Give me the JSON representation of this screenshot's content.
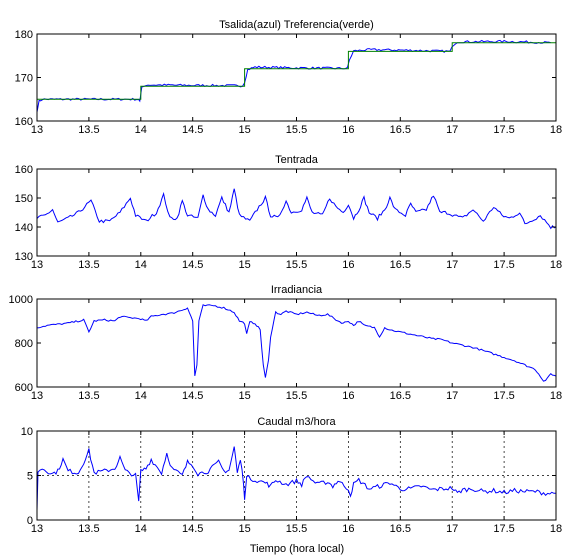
{
  "figure": {
    "xlabel": "Tiempo (hora local)"
  },
  "colors": {
    "blue": "#0000ff",
    "green": "#008000",
    "axis": "#000000",
    "grid": "#000000"
  },
  "chart_data": [
    {
      "type": "line",
      "title": "Tsalida(azul) Treferencia(verde)",
      "xlabel": "",
      "ylabel": "",
      "xlim": [
        13,
        18
      ],
      "ylim": [
        160,
        180
      ],
      "xticks": [
        "13",
        "13.5",
        "14",
        "14.5",
        "15",
        "15.5",
        "16",
        "16.5",
        "17",
        "17.5",
        "18"
      ],
      "yticks": [
        "160",
        "170",
        "180"
      ],
      "grid": false,
      "series": [
        {
          "color": "blue",
          "noise": 0.25,
          "points": [
            [
              13,
              162.3
            ],
            [
              13.02,
              164.5
            ],
            [
              13.05,
              165
            ],
            [
              13.5,
              165
            ],
            [
              13.98,
              165
            ],
            [
              13.99,
              164.5
            ],
            [
              14.01,
              167.6
            ],
            [
              14.05,
              168.3
            ],
            [
              14.5,
              168.2
            ],
            [
              14.98,
              168.1
            ],
            [
              15.0,
              169
            ],
            [
              15.03,
              171.8
            ],
            [
              15.1,
              172.4
            ],
            [
              15.5,
              172.2
            ],
            [
              15.99,
              172.1
            ],
            [
              16.01,
              174
            ],
            [
              16.05,
              176.1
            ],
            [
              16.2,
              176.4
            ],
            [
              16.5,
              176.3
            ],
            [
              16.98,
              176
            ],
            [
              17.01,
              177.5
            ],
            [
              17.05,
              178.2
            ],
            [
              17.5,
              178.3
            ],
            [
              17.95,
              178
            ]
          ]
        },
        {
          "color": "green",
          "noise": 0,
          "points": [
            [
              13,
              165
            ],
            [
              14,
              165
            ],
            [
              14,
              168
            ],
            [
              15,
              168
            ],
            [
              15,
              172
            ],
            [
              16,
              172
            ],
            [
              16,
              176
            ],
            [
              17,
              176
            ],
            [
              17,
              178
            ],
            [
              18,
              178
            ]
          ]
        }
      ]
    },
    {
      "type": "line",
      "title": "Tentrada",
      "xlabel": "",
      "ylabel": "",
      "xlim": [
        13,
        18
      ],
      "ylim": [
        130,
        160
      ],
      "xticks": [
        "13",
        "13.5",
        "14",
        "14.5",
        "15",
        "15.5",
        "16",
        "16.5",
        "17",
        "17.5",
        "18"
      ],
      "yticks": [
        "130",
        "140",
        "150",
        "160"
      ],
      "grid": false,
      "series": [
        {
          "color": "blue",
          "noise": 0.6,
          "points": [
            [
              13,
              143
            ],
            [
              13.08,
              144
            ],
            [
              13.15,
              146
            ],
            [
              13.2,
              141.5
            ],
            [
              13.3,
              143
            ],
            [
              13.4,
              145
            ],
            [
              13.52,
              149
            ],
            [
              13.6,
              142
            ],
            [
              13.7,
              142
            ],
            [
              13.8,
              145
            ],
            [
              13.9,
              150
            ],
            [
              13.95,
              144
            ],
            [
              14.05,
              142
            ],
            [
              14.15,
              145
            ],
            [
              14.22,
              151
            ],
            [
              14.28,
              143
            ],
            [
              14.35,
              143
            ],
            [
              14.4,
              149
            ],
            [
              14.45,
              144
            ],
            [
              14.55,
              143
            ],
            [
              14.6,
              151
            ],
            [
              14.65,
              146
            ],
            [
              14.72,
              144
            ],
            [
              14.78,
              150
            ],
            [
              14.85,
              145
            ],
            [
              14.9,
              153
            ],
            [
              14.95,
              144
            ],
            [
              15.05,
              142
            ],
            [
              15.12,
              146
            ],
            [
              15.2,
              150
            ],
            [
              15.25,
              144
            ],
            [
              15.32,
              143
            ],
            [
              15.4,
              149
            ],
            [
              15.45,
              145
            ],
            [
              15.55,
              146
            ],
            [
              15.6,
              150
            ],
            [
              15.65,
              145
            ],
            [
              15.75,
              144
            ],
            [
              15.82,
              150
            ],
            [
              15.88,
              147
            ],
            [
              15.95,
              145
            ],
            [
              16.0,
              148
            ],
            [
              16.05,
              143
            ],
            [
              16.1,
              146
            ],
            [
              16.15,
              150
            ],
            [
              16.2,
              145
            ],
            [
              16.28,
              143
            ],
            [
              16.35,
              146
            ],
            [
              16.4,
              150
            ],
            [
              16.45,
              146
            ],
            [
              16.55,
              144
            ],
            [
              16.6,
              148
            ],
            [
              16.65,
              145
            ],
            [
              16.75,
              146
            ],
            [
              16.82,
              151
            ],
            [
              16.88,
              145
            ],
            [
              16.95,
              145
            ],
            [
              17.02,
              144
            ],
            [
              17.1,
              143
            ],
            [
              17.2,
              146
            ],
            [
              17.3,
              142
            ],
            [
              17.4,
              147
            ],
            [
              17.48,
              144
            ],
            [
              17.55,
              143
            ],
            [
              17.65,
              145
            ],
            [
              17.7,
              141
            ],
            [
              17.75,
              142
            ],
            [
              17.85,
              144
            ],
            [
              17.95,
              140
            ],
            [
              18.0,
              140
            ]
          ]
        }
      ]
    },
    {
      "type": "line",
      "title": "Irradiancia",
      "xlabel": "",
      "ylabel": "",
      "xlim": [
        13,
        18
      ],
      "ylim": [
        600,
        1000
      ],
      "xticks": [
        "13",
        "13.5",
        "14",
        "14.5",
        "15",
        "15.5",
        "16",
        "16.5",
        "17",
        "17.5",
        "18"
      ],
      "yticks": [
        "600",
        "800",
        "1000"
      ],
      "grid": false,
      "series": [
        {
          "color": "blue",
          "noise": 4,
          "points": [
            [
              13,
              870
            ],
            [
              13.1,
              880
            ],
            [
              13.2,
              885
            ],
            [
              13.3,
              890
            ],
            [
              13.45,
              905
            ],
            [
              13.5,
              850
            ],
            [
              13.55,
              900
            ],
            [
              13.65,
              905
            ],
            [
              13.75,
              900
            ],
            [
              13.8,
              920
            ],
            [
              13.9,
              915
            ],
            [
              14.0,
              910
            ],
            [
              14.05,
              900
            ],
            [
              14.1,
              920
            ],
            [
              14.2,
              930
            ],
            [
              14.3,
              935
            ],
            [
              14.4,
              950
            ],
            [
              14.45,
              960
            ],
            [
              14.5,
              900
            ],
            [
              14.52,
              650
            ],
            [
              14.54,
              700
            ],
            [
              14.56,
              900
            ],
            [
              14.6,
              970
            ],
            [
              14.7,
              970
            ],
            [
              14.8,
              960
            ],
            [
              14.9,
              940
            ],
            [
              14.95,
              900
            ],
            [
              15.0,
              890
            ],
            [
              15.02,
              840
            ],
            [
              15.05,
              895
            ],
            [
              15.1,
              890
            ],
            [
              15.15,
              860
            ],
            [
              15.18,
              700
            ],
            [
              15.2,
              640
            ],
            [
              15.23,
              720
            ],
            [
              15.25,
              830
            ],
            [
              15.3,
              940
            ],
            [
              15.35,
              930
            ],
            [
              15.4,
              945
            ],
            [
              15.5,
              930
            ],
            [
              15.6,
              940
            ],
            [
              15.7,
              925
            ],
            [
              15.8,
              930
            ],
            [
              15.9,
              900
            ],
            [
              15.95,
              890
            ],
            [
              16.0,
              900
            ],
            [
              16.05,
              880
            ],
            [
              16.1,
              900
            ],
            [
              16.15,
              880
            ],
            [
              16.25,
              870
            ],
            [
              16.3,
              830
            ],
            [
              16.35,
              870
            ],
            [
              16.4,
              860
            ],
            [
              16.5,
              850
            ],
            [
              16.6,
              840
            ],
            [
              16.7,
              830
            ],
            [
              16.8,
              820
            ],
            [
              16.9,
              815
            ],
            [
              17.0,
              800
            ],
            [
              17.1,
              790
            ],
            [
              17.2,
              780
            ],
            [
              17.3,
              765
            ],
            [
              17.4,
              750
            ],
            [
              17.5,
              735
            ],
            [
              17.6,
              720
            ],
            [
              17.7,
              700
            ],
            [
              17.8,
              680
            ],
            [
              17.85,
              650
            ],
            [
              17.88,
              625
            ],
            [
              17.92,
              640
            ],
            [
              17.95,
              660
            ],
            [
              18.0,
              650
            ]
          ]
        }
      ]
    },
    {
      "type": "line",
      "title": "Caudal m3/hora",
      "xlabel": "Tiempo (hora local)",
      "ylabel": "",
      "xlim": [
        13,
        18
      ],
      "ylim": [
        0,
        10
      ],
      "xticks": [
        "13",
        "13.5",
        "14",
        "14.5",
        "15",
        "15.5",
        "16",
        "16.5",
        "17",
        "17.5",
        "18"
      ],
      "yticks": [
        "0",
        "5",
        "10"
      ],
      "grid": true,
      "series": [
        {
          "color": "blue",
          "noise": 0.25,
          "points": [
            [
              13,
              1.0
            ],
            [
              13.01,
              5.5
            ],
            [
              13.05,
              5.8
            ],
            [
              13.15,
              5.2
            ],
            [
              13.2,
              5.5
            ],
            [
              13.25,
              6.8
            ],
            [
              13.3,
              5.5
            ],
            [
              13.4,
              5.3
            ],
            [
              13.45,
              6.5
            ],
            [
              13.5,
              7.8
            ],
            [
              13.55,
              5.3
            ],
            [
              13.65,
              5.5
            ],
            [
              13.75,
              5.8
            ],
            [
              13.8,
              7.0
            ],
            [
              13.85,
              5.5
            ],
            [
              13.95,
              5.0
            ],
            [
              13.98,
              2.0
            ],
            [
              14.0,
              5.5
            ],
            [
              14.05,
              5.8
            ],
            [
              14.1,
              6.8
            ],
            [
              14.2,
              5.3
            ],
            [
              14.25,
              7.5
            ],
            [
              14.3,
              5.8
            ],
            [
              14.4,
              5.0
            ],
            [
              14.45,
              6.5
            ],
            [
              14.5,
              6.2
            ],
            [
              14.55,
              5.2
            ],
            [
              14.65,
              5.5
            ],
            [
              14.75,
              6.5
            ],
            [
              14.8,
              5.5
            ],
            [
              14.85,
              5.6
            ],
            [
              14.9,
              8.2
            ],
            [
              14.93,
              5.3
            ],
            [
              14.96,
              6.8
            ],
            [
              14.99,
              4.2
            ],
            [
              15.0,
              2.5
            ],
            [
              15.02,
              4.8
            ],
            [
              15.1,
              4.5
            ],
            [
              15.2,
              4.2
            ],
            [
              15.25,
              3.8
            ],
            [
              15.3,
              4.5
            ],
            [
              15.4,
              4.0
            ],
            [
              15.5,
              4.4
            ],
            [
              15.55,
              4.0
            ],
            [
              15.6,
              5.0
            ],
            [
              15.7,
              4.0
            ],
            [
              15.8,
              4.3
            ],
            [
              15.85,
              3.8
            ],
            [
              15.9,
              4.4
            ],
            [
              16.0,
              3.5
            ],
            [
              16.02,
              2.8
            ],
            [
              16.05,
              4.0
            ],
            [
              16.1,
              4.5
            ],
            [
              16.2,
              3.5
            ],
            [
              16.3,
              3.8
            ],
            [
              16.4,
              4.2
            ],
            [
              16.5,
              3.5
            ],
            [
              16.6,
              3.5
            ],
            [
              16.7,
              3.8
            ],
            [
              16.8,
              3.4
            ],
            [
              16.9,
              3.5
            ],
            [
              17.0,
              3.6
            ],
            [
              17.05,
              3.0
            ],
            [
              17.1,
              3.4
            ],
            [
              17.2,
              3.5
            ],
            [
              17.3,
              3.2
            ],
            [
              17.4,
              3.3
            ],
            [
              17.5,
              3.1
            ],
            [
              17.6,
              3.3
            ],
            [
              17.7,
              3.2
            ],
            [
              17.8,
              3.2
            ],
            [
              17.9,
              3.0
            ],
            [
              18.0,
              3.0
            ]
          ]
        }
      ]
    }
  ]
}
